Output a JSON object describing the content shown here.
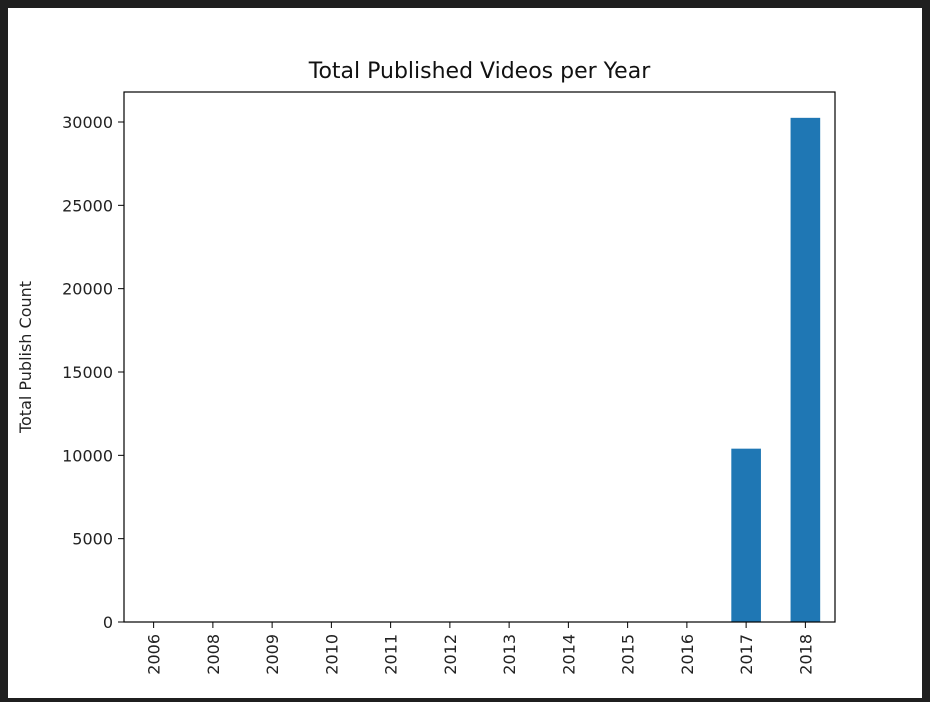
{
  "chart_data": {
    "type": "bar",
    "title": "Total Published Videos per Year",
    "xlabel": "",
    "ylabel": "Total Publish Count",
    "categories": [
      "2006",
      "2008",
      "2009",
      "2010",
      "2011",
      "2012",
      "2013",
      "2014",
      "2015",
      "2016",
      "2017",
      "2018"
    ],
    "values": [
      1,
      1,
      1,
      1,
      1,
      1,
      1,
      1,
      2,
      10,
      10400,
      30250
    ],
    "ylim": [
      0,
      31800
    ],
    "yticks": [
      0,
      5000,
      10000,
      15000,
      20000,
      25000,
      30000
    ],
    "ytick_labels": [
      "0",
      "5000",
      "10000",
      "15000",
      "20000",
      "25000",
      "30000"
    ],
    "bar_color": "#1f77b4",
    "grid": false,
    "legend": "none"
  }
}
